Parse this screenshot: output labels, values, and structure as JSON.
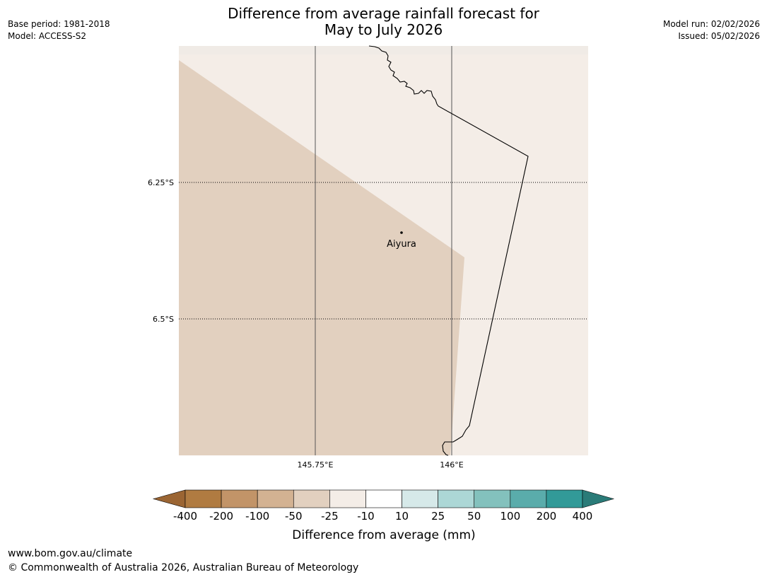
{
  "title": {
    "line1": "Difference from average rainfall forecast for",
    "line2": "May to July 2026"
  },
  "meta_left": {
    "base_period": "Base period: 1981-2018",
    "model": "Model: ACCESS-S2"
  },
  "meta_right": {
    "model_run": "Model run: 02/02/2026",
    "issued": "Issued: 05/02/2026"
  },
  "map": {
    "lat_labels": [
      "6.25°S",
      "6.5°S"
    ],
    "lon_labels": [
      "145.75°E",
      "146°E"
    ],
    "place": {
      "name": "Aiyura"
    },
    "colors": {
      "drier_region": "#e2d0bf",
      "neutral_region": "#f4ede7",
      "coastline": "#000000",
      "gridline": "#555555"
    }
  },
  "legend": {
    "title": "Difference from average (mm)",
    "ticks": [
      "-400",
      "-200",
      "-100",
      "-50",
      "-25",
      "-10",
      "10",
      "25",
      "50",
      "100",
      "200",
      "400"
    ],
    "colors": [
      "#9b6533",
      "#b07b41",
      "#c29468",
      "#d3b292",
      "#e2d0bf",
      "#f4ede7",
      "#ffffff",
      "#d6e9e9",
      "#acd7d6",
      "#83c1bd",
      "#5aacab",
      "#329a98",
      "#2a7b78"
    ]
  },
  "footer": {
    "url": "www.bom.gov.au/climate",
    "copyright": "© Commonwealth of Australia 2026, Australian Bureau of Meteorology"
  }
}
